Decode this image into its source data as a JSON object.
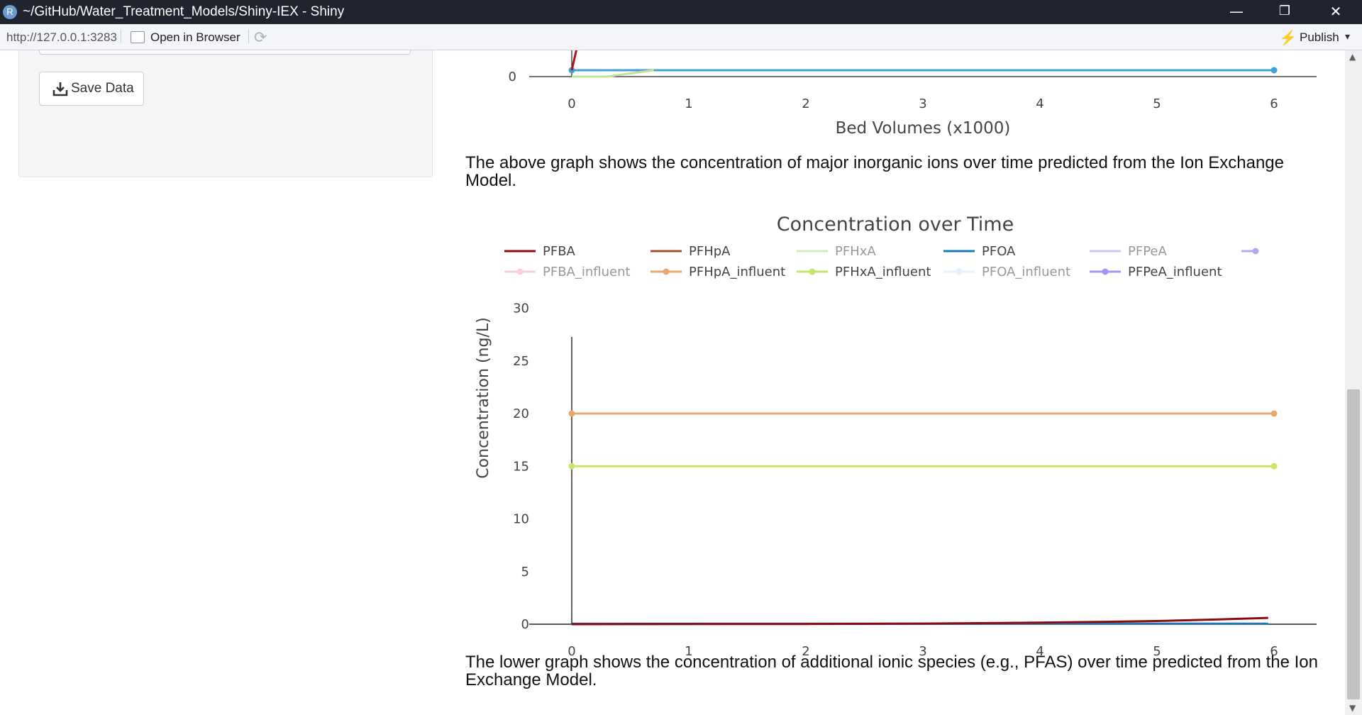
{
  "window": {
    "title": "~/GitHub/Water_Treatment_Models/Shiny-IEX - Shiny",
    "app_icon": "R",
    "minimize": "—",
    "restore": "❐",
    "close": "✕"
  },
  "toolbar": {
    "url": "http://127.0.0.1:3283",
    "open_in_browser": "Open in Browser",
    "refresh_icon": "⟳",
    "publish": "Publish",
    "publish_caret": "▾"
  },
  "sidebar": {
    "save_button": "Save Data"
  },
  "captions": {
    "upper": "The above graph shows the concentration of major inorganic ions over time predicted from the Ion Exchange Model.",
    "lower": "The lower graph shows the concentration of additional ionic species (e.g., PFAS) over time predicted from the Ion Exchange Model."
  },
  "chart_data": [
    {
      "type": "line",
      "title": "",
      "xlabel": "Bed Volumes (x1000)",
      "ylabel": "",
      "x_ticks": [
        "0",
        "1",
        "2",
        "3",
        "4",
        "5",
        "6"
      ],
      "y_ticks_visible": [
        "0"
      ],
      "xlim": [
        0,
        6
      ],
      "series_visible": [
        {
          "name": "",
          "color": "#41a0d6",
          "marker": true,
          "x": [
            0,
            6
          ],
          "y": [
            0.3,
            0.3
          ]
        },
        {
          "name": "",
          "color": "#c3e493",
          "marker": false,
          "x": [
            0,
            0.3,
            0.7
          ],
          "y": [
            0,
            0,
            0.3
          ]
        },
        {
          "name": "",
          "color": "#b5121b",
          "marker": false,
          "x": [
            0,
            0.05
          ],
          "y": [
            0.3,
            1.5
          ]
        }
      ]
    },
    {
      "type": "line",
      "title": "Concentration over Time",
      "xlabel": "Bed Volumes (x1000)",
      "ylabel": "Concentration (ng/L)",
      "xlim": [
        0,
        6
      ],
      "ylim": [
        0,
        31
      ],
      "x_ticks": [
        0,
        1,
        2,
        3,
        4,
        5,
        6
      ],
      "y_ticks": [
        0,
        5,
        10,
        15,
        20,
        25,
        30
      ],
      "legend": {
        "placement": "top",
        "entries": [
          {
            "label": "PFBA",
            "color": "#8b0a14",
            "style": "line",
            "dimmed": false
          },
          {
            "label": "PFHpA",
            "color": "#a0522d",
            "style": "line",
            "dimmed": false
          },
          {
            "label": "PFHxA",
            "color": "#b5d98c",
            "style": "line",
            "dimmed": true
          },
          {
            "label": "PFOA",
            "color": "#1f77b4",
            "style": "line",
            "dimmed": false
          },
          {
            "label": "PFPeA",
            "color": "#a89be0",
            "style": "line",
            "dimmed": true
          },
          {
            "label": "",
            "color": "#b5a8f0",
            "style": "marker-line",
            "dimmed": false
          },
          {
            "label": "PFBA_influent",
            "color": "#f4a9b5",
            "style": "marker-line",
            "dimmed": true
          },
          {
            "label": "PFHpA_influent",
            "color": "#e8a86f",
            "style": "marker-line",
            "dimmed": false
          },
          {
            "label": "PFHxA_influent",
            "color": "#c3e66b",
            "style": "marker-line",
            "dimmed": false
          },
          {
            "label": "PFOA_influent",
            "color": "#cfe6f7",
            "style": "marker-line",
            "dimmed": true
          },
          {
            "label": "PFPeA_influent",
            "color": "#a594f0",
            "style": "marker-line",
            "dimmed": false
          }
        ]
      },
      "series": [
        {
          "name": "PFHpA_influent",
          "color": "#e8a86f",
          "marker": true,
          "x": [
            0,
            6
          ],
          "y": [
            20,
            20
          ]
        },
        {
          "name": "PFHxA_influent",
          "color": "#c9e66b",
          "marker": true,
          "x": [
            0,
            6
          ],
          "y": [
            15,
            15
          ]
        },
        {
          "name": "PFOA",
          "color": "#1f77b4",
          "marker": false,
          "x": [
            0,
            5.95
          ],
          "y": [
            0.05,
            0.05
          ]
        },
        {
          "name": "PFBA",
          "color": "#8b0a14",
          "marker": false,
          "x": [
            0,
            2,
            3,
            4,
            4.5,
            5,
            5.5,
            5.95
          ],
          "y": [
            0,
            0.02,
            0.06,
            0.15,
            0.22,
            0.3,
            0.45,
            0.6
          ]
        }
      ]
    }
  ]
}
